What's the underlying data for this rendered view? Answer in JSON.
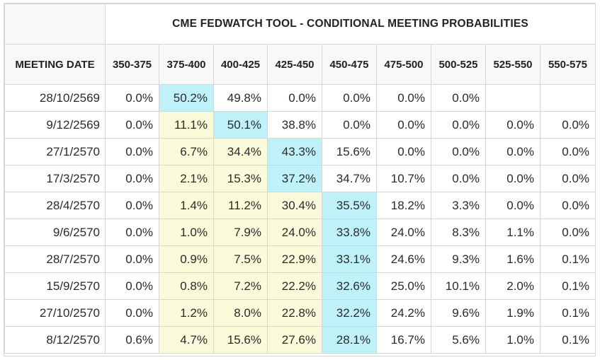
{
  "title": "CME FEDWATCH TOOL - CONDITIONAL MEETING PROBABILITIES",
  "header": {
    "meeting_date": "MEETING DATE",
    "ranges": [
      "350-375",
      "375-400",
      "400-425",
      "425-450",
      "450-475",
      "475-500",
      "500-525",
      "525-550",
      "550-575"
    ]
  },
  "colors": {
    "highlight_current": "#bff2f8",
    "highlight_below": "#fbfbdc",
    "grid": "#d6d6d6",
    "header_bg": "#f8f8f8"
  },
  "rows": [
    {
      "date": "28/10/2569",
      "values": [
        "0.0%",
        "50.2%",
        "49.8%",
        "0.0%",
        "0.0%",
        "0.0%",
        "0.0%",
        "",
        ""
      ],
      "shade": [
        "",
        "cyan",
        "",
        "",
        "",
        "",
        "",
        "",
        ""
      ]
    },
    {
      "date": "9/12/2569",
      "values": [
        "0.0%",
        "11.1%",
        "50.1%",
        "38.8%",
        "0.0%",
        "0.0%",
        "0.0%",
        "0.0%",
        "0.0%"
      ],
      "shade": [
        "",
        "yellow",
        "cyan",
        "",
        "",
        "",
        "",
        "",
        ""
      ]
    },
    {
      "date": "27/1/2570",
      "values": [
        "0.0%",
        "6.7%",
        "34.4%",
        "43.3%",
        "15.6%",
        "0.0%",
        "0.0%",
        "0.0%",
        "0.0%"
      ],
      "shade": [
        "",
        "yellow",
        "yellow",
        "cyan",
        "",
        "",
        "",
        "",
        ""
      ]
    },
    {
      "date": "17/3/2570",
      "values": [
        "0.0%",
        "2.1%",
        "15.3%",
        "37.2%",
        "34.7%",
        "10.7%",
        "0.0%",
        "0.0%",
        "0.0%"
      ],
      "shade": [
        "",
        "yellow",
        "yellow",
        "cyan",
        "",
        "",
        "",
        "",
        ""
      ]
    },
    {
      "date": "28/4/2570",
      "values": [
        "0.0%",
        "1.4%",
        "11.2%",
        "30.4%",
        "35.5%",
        "18.2%",
        "3.3%",
        "0.0%",
        "0.0%"
      ],
      "shade": [
        "",
        "yellow",
        "yellow",
        "yellow",
        "cyan",
        "",
        "",
        "",
        ""
      ]
    },
    {
      "date": "9/6/2570",
      "values": [
        "0.0%",
        "1.0%",
        "7.9%",
        "24.0%",
        "33.8%",
        "24.0%",
        "8.3%",
        "1.1%",
        "0.0%"
      ],
      "shade": [
        "",
        "yellow",
        "yellow",
        "yellow",
        "cyan",
        "",
        "",
        "",
        ""
      ]
    },
    {
      "date": "28/7/2570",
      "values": [
        "0.0%",
        "0.9%",
        "7.5%",
        "22.9%",
        "33.1%",
        "24.6%",
        "9.3%",
        "1.6%",
        "0.1%"
      ],
      "shade": [
        "",
        "yellow",
        "yellow",
        "yellow",
        "cyan",
        "",
        "",
        "",
        ""
      ]
    },
    {
      "date": "15/9/2570",
      "values": [
        "0.0%",
        "0.8%",
        "7.2%",
        "22.2%",
        "32.6%",
        "25.0%",
        "10.1%",
        "2.0%",
        "0.1%"
      ],
      "shade": [
        "",
        "yellow",
        "yellow",
        "yellow",
        "cyan",
        "",
        "",
        "",
        ""
      ]
    },
    {
      "date": "27/10/2570",
      "values": [
        "0.0%",
        "1.2%",
        "8.0%",
        "22.8%",
        "32.2%",
        "24.2%",
        "9.6%",
        "1.9%",
        "0.1%"
      ],
      "shade": [
        "",
        "yellow",
        "yellow",
        "yellow",
        "cyan",
        "",
        "",
        "",
        ""
      ]
    },
    {
      "date": "8/12/2570",
      "values": [
        "0.6%",
        "4.7%",
        "15.6%",
        "27.6%",
        "28.1%",
        "16.7%",
        "5.6%",
        "1.0%",
        "0.1%"
      ],
      "shade": [
        "",
        "yellow",
        "yellow",
        "yellow",
        "cyan",
        "",
        "",
        "",
        ""
      ]
    }
  ]
}
